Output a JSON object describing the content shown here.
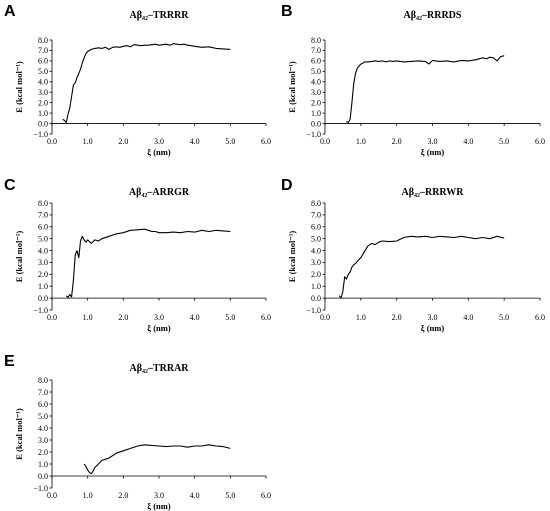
{
  "figure": {
    "panels": [
      {
        "letter": "A",
        "title": "Aβ₄₂–TRRRR"
      },
      {
        "letter": "B",
        "title": "Aβ₄₂–RRRDS"
      },
      {
        "letter": "C",
        "title": "Aβ₄₂–ARRGR"
      },
      {
        "letter": "D",
        "title": "Aβ₄₂–RRRWR"
      },
      {
        "letter": "E",
        "title": "Aβ₄₂–TRRAR"
      }
    ]
  },
  "chart_data": [
    {
      "type": "line",
      "title": "Aβ₄₂–TRRRR",
      "xlabel": "ξ (nm)",
      "ylabel": "E (kcal mol⁻¹)",
      "xlim": [
        0,
        6
      ],
      "ylim": [
        -1,
        8
      ],
      "xticks": [
        "0.0",
        "1.0",
        "2.0",
        "3.0",
        "4.0",
        "5.0",
        "6.0"
      ],
      "yticks": [
        "−1.0",
        "0.0",
        "1.0",
        "2.0",
        "3.0",
        "4.0",
        "5.0",
        "6.0",
        "7.0",
        "8.0"
      ],
      "series": [
        {
          "x": [
            0.3,
            0.35,
            0.4,
            0.45,
            0.5,
            0.55,
            0.6,
            0.65,
            0.7,
            0.75,
            0.8,
            0.85,
            0.9,
            0.95,
            1.0,
            1.1,
            1.2,
            1.3,
            1.4,
            1.5,
            1.6,
            1.7,
            1.8,
            1.9,
            2.0,
            2.1,
            2.2,
            2.3,
            2.4,
            2.5,
            2.6,
            2.7,
            2.8,
            2.9,
            3.0,
            3.1,
            3.2,
            3.3,
            3.4,
            3.5,
            3.6,
            3.7,
            3.8,
            3.9,
            4.0,
            4.2,
            4.4,
            4.6,
            4.8,
            5.0
          ],
          "y": [
            0.4,
            0.3,
            0.1,
            0.9,
            1.5,
            2.6,
            3.7,
            3.9,
            4.4,
            4.8,
            5.2,
            5.8,
            6.3,
            6.7,
            6.9,
            7.1,
            7.2,
            7.25,
            7.2,
            7.3,
            7.1,
            7.3,
            7.35,
            7.3,
            7.4,
            7.45,
            7.35,
            7.55,
            7.5,
            7.45,
            7.5,
            7.5,
            7.55,
            7.6,
            7.5,
            7.55,
            7.6,
            7.5,
            7.65,
            7.6,
            7.55,
            7.6,
            7.5,
            7.45,
            7.4,
            7.3,
            7.35,
            7.2,
            7.15,
            7.1
          ]
        }
      ]
    },
    {
      "type": "line",
      "title": "Aβ₄₂–RRRDS",
      "xlabel": "ξ (nm)",
      "ylabel": "E (kcal mol⁻¹)",
      "xlim": [
        0,
        6
      ],
      "ylim": [
        -1,
        8
      ],
      "xticks": [
        "0.0",
        "1.0",
        "2.0",
        "3.0",
        "4.0",
        "5.0",
        "6.0"
      ],
      "yticks": [
        "−1.0",
        "0.0",
        "1.0",
        "2.0",
        "3.0",
        "4.0",
        "5.0",
        "6.0",
        "7.0",
        "8.0"
      ],
      "series": [
        {
          "x": [
            0.6,
            0.65,
            0.7,
            0.75,
            0.8,
            0.85,
            0.9,
            0.95,
            1.0,
            1.05,
            1.1,
            1.2,
            1.3,
            1.4,
            1.5,
            1.6,
            1.7,
            1.8,
            1.9,
            2.0,
            2.2,
            2.4,
            2.6,
            2.8,
            2.9,
            3.0,
            3.2,
            3.4,
            3.6,
            3.8,
            4.0,
            4.2,
            4.4,
            4.5,
            4.6,
            4.7,
            4.8,
            4.9,
            5.0
          ],
          "y": [
            0.2,
            0.1,
            0.4,
            2.0,
            3.8,
            4.8,
            5.3,
            5.5,
            5.7,
            5.75,
            5.9,
            5.9,
            5.95,
            6.0,
            5.95,
            6.0,
            5.9,
            6.0,
            5.95,
            6.0,
            5.9,
            5.95,
            6.0,
            5.95,
            5.7,
            6.05,
            5.95,
            6.0,
            5.9,
            6.05,
            6.0,
            6.1,
            6.3,
            6.2,
            6.35,
            6.3,
            6.0,
            6.4,
            6.5
          ]
        }
      ]
    },
    {
      "type": "line",
      "title": "Aβ₄₂–ARRGR",
      "xlabel": "ξ (nm)",
      "ylabel": "E (kcal mol⁻¹)",
      "xlim": [
        0,
        6
      ],
      "ylim": [
        -1,
        8
      ],
      "xticks": [
        "0.0",
        "1.0",
        "2.0",
        "3.0",
        "4.0",
        "5.0",
        "6.0"
      ],
      "yticks": [
        "−1.0",
        "0.0",
        "1.0",
        "2.0",
        "3.0",
        "4.0",
        "5.0",
        "6.0",
        "7.0",
        "8.0"
      ],
      "series": [
        {
          "x": [
            0.4,
            0.45,
            0.5,
            0.55,
            0.6,
            0.65,
            0.7,
            0.75,
            0.8,
            0.85,
            0.9,
            0.95,
            1.0,
            1.1,
            1.2,
            1.3,
            1.4,
            1.6,
            1.8,
            2.0,
            2.2,
            2.4,
            2.6,
            2.8,
            2.9,
            3.0,
            3.2,
            3.4,
            3.6,
            3.8,
            4.0,
            4.2,
            4.4,
            4.6,
            4.8,
            5.0
          ],
          "y": [
            0.2,
            0.05,
            0.3,
            0.1,
            1.5,
            3.6,
            4.0,
            3.4,
            4.8,
            5.2,
            4.9,
            4.7,
            4.9,
            4.6,
            4.9,
            4.8,
            5.0,
            5.2,
            5.4,
            5.5,
            5.7,
            5.75,
            5.8,
            5.6,
            5.6,
            5.5,
            5.5,
            5.55,
            5.5,
            5.6,
            5.55,
            5.7,
            5.6,
            5.7,
            5.65,
            5.6
          ]
        }
      ]
    },
    {
      "type": "line",
      "title": "Aβ₄₂–RRRWR",
      "xlabel": "ξ (nm)",
      "ylabel": "E (kcal mol⁻¹)",
      "xlim": [
        0,
        6
      ],
      "ylim": [
        -1,
        8
      ],
      "xticks": [
        "0.0",
        "1.0",
        "2.0",
        "3.0",
        "4.0",
        "5.0",
        "6.0"
      ],
      "yticks": [
        "−1.0",
        "0.0",
        "1.0",
        "2.0",
        "3.0",
        "4.0",
        "5.0",
        "6.0",
        "7.0",
        "8.0"
      ],
      "series": [
        {
          "x": [
            0.4,
            0.45,
            0.5,
            0.55,
            0.6,
            0.65,
            0.7,
            0.75,
            0.8,
            0.85,
            0.9,
            1.0,
            1.1,
            1.2,
            1.3,
            1.4,
            1.5,
            1.6,
            1.8,
            2.0,
            2.2,
            2.4,
            2.6,
            2.8,
            3.0,
            3.2,
            3.4,
            3.6,
            3.8,
            4.0,
            4.2,
            4.4,
            4.6,
            4.8,
            5.0
          ],
          "y": [
            0.2,
            0.0,
            0.6,
            1.8,
            1.6,
            2.0,
            2.2,
            2.6,
            2.8,
            2.9,
            3.1,
            3.4,
            3.9,
            4.4,
            4.6,
            4.5,
            4.7,
            4.8,
            4.75,
            4.8,
            5.1,
            5.2,
            5.15,
            5.2,
            5.1,
            5.2,
            5.15,
            5.1,
            5.2,
            5.1,
            5.0,
            5.1,
            5.0,
            5.2,
            5.05
          ]
        }
      ]
    },
    {
      "type": "line",
      "title": "Aβ₄₂–TRRAR",
      "xlabel": "ξ (nm)",
      "ylabel": "E (kcal mol⁻¹)",
      "xlim": [
        0,
        6
      ],
      "ylim": [
        -1,
        8
      ],
      "xticks": [
        "0.0",
        "1.0",
        "2.0",
        "3.0",
        "4.0",
        "5.0",
        "6.0"
      ],
      "yticks": [
        "−1.0",
        "0.0",
        "1.0",
        "2.0",
        "3.0",
        "4.0",
        "5.0",
        "6.0",
        "7.0",
        "8.0"
      ],
      "series": [
        {
          "x": [
            0.9,
            0.95,
            1.0,
            1.05,
            1.1,
            1.15,
            1.2,
            1.3,
            1.4,
            1.5,
            1.6,
            1.8,
            2.0,
            2.2,
            2.4,
            2.6,
            2.8,
            3.0,
            3.2,
            3.4,
            3.6,
            3.8,
            4.0,
            4.2,
            4.4,
            4.6,
            4.8,
            5.0
          ],
          "y": [
            1.0,
            0.8,
            0.5,
            0.3,
            0.2,
            0.4,
            0.7,
            1.0,
            1.3,
            1.4,
            1.5,
            1.9,
            2.1,
            2.3,
            2.5,
            2.6,
            2.55,
            2.5,
            2.45,
            2.5,
            2.5,
            2.4,
            2.5,
            2.5,
            2.6,
            2.5,
            2.45,
            2.3
          ]
        }
      ]
    }
  ]
}
